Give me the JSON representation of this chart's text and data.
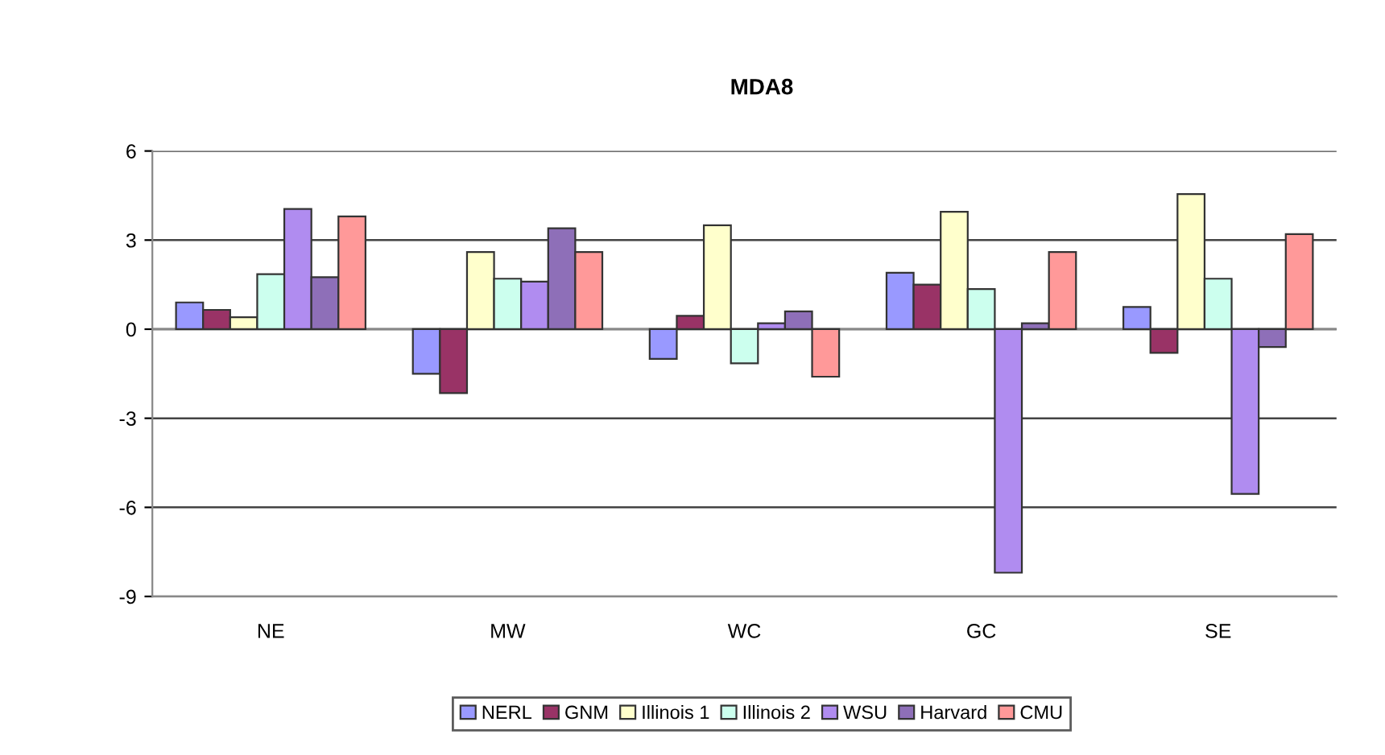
{
  "chart_data": {
    "type": "bar",
    "title": "MDA8",
    "categories": [
      "NE",
      "MW",
      "WC",
      "GC",
      "SE"
    ],
    "series": [
      {
        "name": "NERL",
        "color": "#9999ff",
        "values": [
          0.9,
          -1.5,
          -1.0,
          1.9,
          0.75
        ]
      },
      {
        "name": "GNM",
        "color": "#993366",
        "values": [
          0.65,
          -2.15,
          0.45,
          1.5,
          -0.8
        ]
      },
      {
        "name": "Illinois 1",
        "color": "#ffffcc",
        "values": [
          0.4,
          2.6,
          3.5,
          3.95,
          4.55
        ]
      },
      {
        "name": "Illinois 2",
        "color": "#ccffee",
        "values": [
          1.85,
          1.7,
          -1.15,
          1.35,
          1.7
        ]
      },
      {
        "name": "WSU",
        "color": "#b08cf0",
        "values": [
          4.05,
          1.6,
          0.2,
          -8.2,
          -5.55
        ]
      },
      {
        "name": "Harvard",
        "color": "#8e6fb8",
        "values": [
          1.75,
          3.4,
          0.6,
          0.2,
          -0.6
        ]
      },
      {
        "name": "CMU",
        "color": "#ff9999",
        "values": [
          3.8,
          2.6,
          -1.6,
          2.6,
          3.2
        ]
      }
    ],
    "ylim": [
      -9,
      6
    ],
    "yticks": [
      -9,
      -6,
      -3,
      0,
      3,
      6
    ],
    "grid": "y",
    "legend": "bottom"
  }
}
